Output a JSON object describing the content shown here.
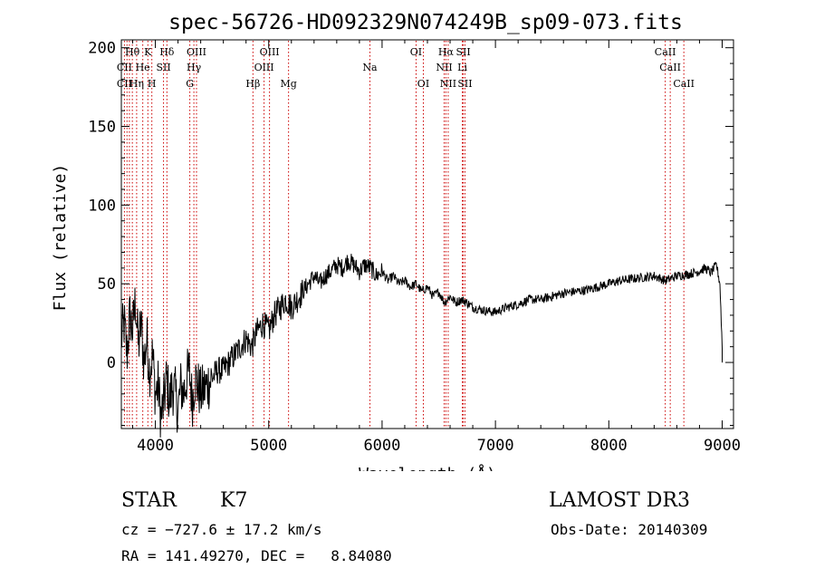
{
  "chart_data": {
    "type": "line",
    "title": "spec-56726-HD092329N074249B_sp09-073.fits",
    "xlabel": "Wavelength (Å)",
    "ylabel": "Flux (relative)",
    "xlim": [
      3700,
      9100
    ],
    "ylim": [
      -42,
      205
    ],
    "xticks": [
      4000,
      5000,
      6000,
      7000,
      8000,
      9000
    ],
    "yticks": [
      0,
      50,
      100,
      150,
      200
    ],
    "grid": false,
    "line_color": "#000000",
    "marker_color": "#cc0000",
    "series": [
      {
        "x": [
          3700,
          3725,
          3750,
          3775,
          3800,
          3825,
          3850,
          3875,
          3900,
          3925,
          3950,
          3975,
          4000,
          4025,
          4050,
          4075,
          4100,
          4125,
          4150,
          4175,
          4200,
          4225,
          4250,
          4275,
          4300,
          4325,
          4350,
          4375,
          4400,
          4450,
          4500,
          4550,
          4600,
          4650,
          4700,
          4750,
          4800,
          4850,
          4900,
          4950,
          5000,
          5050,
          5100,
          5150,
          5200,
          5250,
          5300,
          5350,
          5400,
          5450,
          5500,
          5550,
          5600,
          5650,
          5700,
          5750,
          5800,
          5850,
          5900,
          5950,
          6000,
          6050,
          6100,
          6150,
          6200,
          6250,
          6300,
          6350,
          6400,
          6450,
          6500,
          6550,
          6600,
          6650,
          6700,
          6750,
          6800,
          6900,
          7000,
          7100,
          7200,
          7300,
          7400,
          7500,
          7600,
          7700,
          7800,
          7900,
          8000,
          8100,
          8200,
          8300,
          8400,
          8500,
          8600,
          8700,
          8800,
          8850,
          8900,
          8950,
          8980,
          9000
        ],
        "y": [
          15,
          25,
          5,
          30,
          20,
          40,
          10,
          25,
          0,
          15,
          -5,
          5,
          -20,
          -15,
          -35,
          -25,
          -10,
          -25,
          -15,
          -20,
          -30,
          -15,
          -20,
          -10,
          -5,
          -25,
          -10,
          -15,
          -20,
          -15,
          -10,
          -5,
          -5,
          0,
          5,
          10,
          15,
          10,
          20,
          25,
          20,
          30,
          35,
          40,
          35,
          40,
          45,
          50,
          55,
          50,
          55,
          58,
          62,
          60,
          65,
          62,
          58,
          62,
          60,
          55,
          58,
          52,
          55,
          50,
          52,
          48,
          50,
          45,
          48,
          42,
          45,
          38,
          42,
          38,
          40,
          38,
          35,
          33,
          32,
          35,
          37,
          40,
          40,
          42,
          44,
          45,
          46,
          48,
          50,
          52,
          53,
          54,
          55,
          52,
          55,
          56,
          58,
          60,
          57,
          62,
          50,
          10
        ]
      }
    ],
    "lines_row1": [
      {
        "label": "Hθ",
        "x": 3797
      },
      {
        "label": "K",
        "x": 3934
      },
      {
        "label": "Hδ",
        "x": 4102
      },
      {
        "label": "OIII",
        "x": 4363
      },
      {
        "label": "OIII",
        "x": 5007
      },
      {
        "label": "OI",
        "x": 6300
      },
      {
        "label": "Hα",
        "x": 6563
      },
      {
        "label": "SII",
        "x": 6716
      },
      {
        "label": "CaII",
        "x": 8498
      }
    ],
    "lines_row2": [
      {
        "label": "CII",
        "x": 3727
      },
      {
        "label": "He",
        "x": 3889
      },
      {
        "label": "SII",
        "x": 4072
      },
      {
        "label": "Hγ",
        "x": 4340
      },
      {
        "label": "OIII",
        "x": 4959
      },
      {
        "label": "Na",
        "x": 5893
      },
      {
        "label": "NII",
        "x": 6548
      },
      {
        "label": "Li",
        "x": 6708
      },
      {
        "label": "CaII",
        "x": 8542
      }
    ],
    "lines_row3": [
      {
        "label": "CII",
        "x": 3727
      },
      {
        "label": "Hη",
        "x": 3835
      },
      {
        "label": "H",
        "x": 3969
      },
      {
        "label": "G",
        "x": 4304
      },
      {
        "label": "Hβ",
        "x": 4861
      },
      {
        "label": "Mg",
        "x": 5175
      },
      {
        "label": "OI",
        "x": 6364
      },
      {
        "label": "NII",
        "x": 6583
      },
      {
        "label": "SII",
        "x": 6731
      },
      {
        "label": "CaII",
        "x": 8662
      }
    ],
    "marker_x": [
      3727,
      3750,
      3771,
      3797,
      3835,
      3889,
      3934,
      3969,
      4072,
      4102,
      4304,
      4340,
      4363,
      4861,
      4959,
      5007,
      5175,
      5893,
      6300,
      6364,
      6548,
      6563,
      6583,
      6708,
      6716,
      6731,
      8498,
      8542,
      8662
    ]
  },
  "info": {
    "class": "STAR",
    "subclass": "K7",
    "survey": "LAMOST DR3",
    "cz": "cz = −727.6 ± 17.2 km/s",
    "obsdate": "Obs-Date: 20140309",
    "radec": "RA = 141.49270, DEC =   8.84080"
  }
}
